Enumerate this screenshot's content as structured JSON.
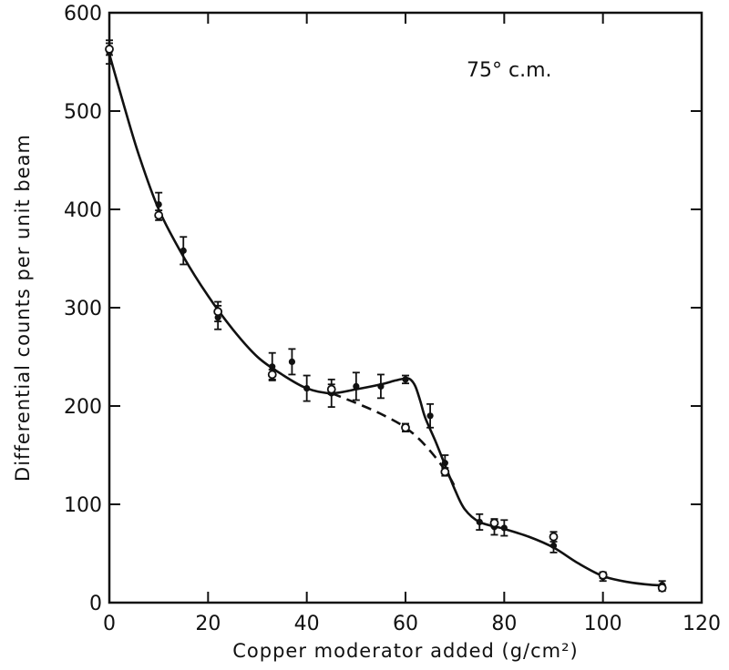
{
  "chart_data": {
    "type": "scatter",
    "title": "",
    "xlabel": "Copper moderator added (g/cm²)",
    "ylabel": "Differential counts per unit beam",
    "annotation": "75° c.m.",
    "xlim": [
      0,
      120
    ],
    "ylim": [
      0,
      600
    ],
    "x_ticks": [
      0,
      20,
      40,
      60,
      80,
      100,
      120
    ],
    "y_ticks": [
      0,
      100,
      200,
      300,
      400,
      500,
      600
    ],
    "grid": false,
    "series": [
      {
        "marker": "filled-circle",
        "points": [
          {
            "x": 0,
            "y": 560,
            "err": 12
          },
          {
            "x": 10,
            "y": 405,
            "err": 12
          },
          {
            "x": 15,
            "y": 358,
            "err": 14
          },
          {
            "x": 22,
            "y": 290,
            "err": 12
          },
          {
            "x": 33,
            "y": 240,
            "err": 14
          },
          {
            "x": 37,
            "y": 245,
            "err": 13
          },
          {
            "x": 40,
            "y": 218,
            "err": 13
          },
          {
            "x": 45,
            "y": 213,
            "err": 14
          },
          {
            "x": 50,
            "y": 220,
            "err": 14
          },
          {
            "x": 55,
            "y": 220,
            "err": 12
          },
          {
            "x": 60,
            "y": 227,
            "err": 4
          },
          {
            "x": 65,
            "y": 190,
            "err": 12
          },
          {
            "x": 68,
            "y": 142,
            "err": 8
          },
          {
            "x": 75,
            "y": 82,
            "err": 8
          },
          {
            "x": 78,
            "y": 77,
            "err": 8
          },
          {
            "x": 80,
            "y": 76,
            "err": 8
          },
          {
            "x": 90,
            "y": 58,
            "err": 7
          },
          {
            "x": 100,
            "y": 26,
            "err": 4
          },
          {
            "x": 112,
            "y": 18,
            "err": 4
          }
        ]
      },
      {
        "marker": "open-circle",
        "points": [
          {
            "x": 0,
            "y": 563,
            "err": 6
          },
          {
            "x": 10,
            "y": 394,
            "err": 5
          },
          {
            "x": 22,
            "y": 296,
            "err": 10
          },
          {
            "x": 33,
            "y": 232,
            "err": 5
          },
          {
            "x": 45,
            "y": 217,
            "err": 5
          },
          {
            "x": 60,
            "y": 178,
            "err": 4
          },
          {
            "x": 68,
            "y": 133,
            "err": 4
          },
          {
            "x": 78,
            "y": 81,
            "err": 4
          },
          {
            "x": 90,
            "y": 67,
            "err": 5
          },
          {
            "x": 100,
            "y": 28,
            "err": 3
          },
          {
            "x": 112,
            "y": 15,
            "err": 3
          }
        ]
      }
    ],
    "curves": [
      {
        "style": "solid",
        "points": [
          [
            0,
            558
          ],
          [
            3,
            505
          ],
          [
            6,
            455
          ],
          [
            10,
            400
          ],
          [
            15,
            352
          ],
          [
            20,
            312
          ],
          [
            25,
            278
          ],
          [
            30,
            250
          ],
          [
            35,
            232
          ],
          [
            40,
            218
          ],
          [
            45,
            213
          ],
          [
            50,
            217
          ],
          [
            55,
            222
          ],
          [
            58,
            226
          ],
          [
            60,
            228
          ],
          [
            61,
            227
          ],
          [
            62,
            220
          ],
          [
            63,
            205
          ],
          [
            64,
            188
          ],
          [
            66,
            165
          ],
          [
            68,
            140
          ],
          [
            70,
            115
          ],
          [
            72,
            95
          ],
          [
            75,
            82
          ],
          [
            80,
            75
          ],
          [
            85,
            67
          ],
          [
            90,
            56
          ],
          [
            95,
            40
          ],
          [
            100,
            27
          ],
          [
            105,
            21
          ],
          [
            110,
            18
          ],
          [
            112,
            18
          ]
        ]
      },
      {
        "style": "dashed",
        "points": [
          [
            45,
            213
          ],
          [
            50,
            203
          ],
          [
            55,
            192
          ],
          [
            60,
            178
          ],
          [
            64,
            160
          ],
          [
            68,
            135
          ],
          [
            70,
            118
          ]
        ]
      }
    ]
  }
}
